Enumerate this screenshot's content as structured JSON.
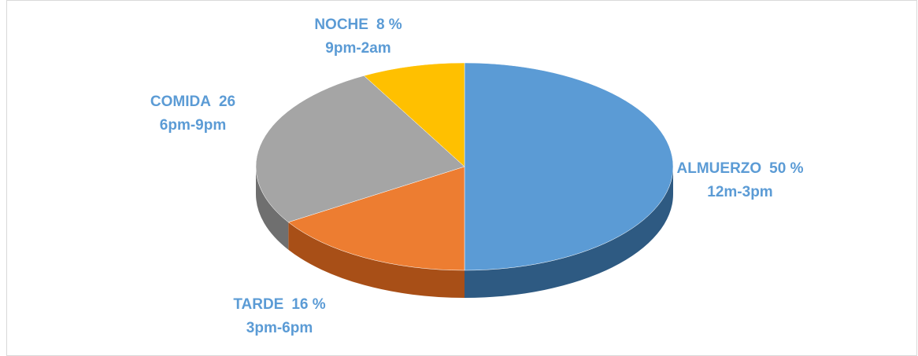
{
  "chart_data": {
    "type": "pie3d",
    "categories": [
      "ALMUERZO",
      "TARDE",
      "COMIDA",
      "NOCHE"
    ],
    "values": [
      50,
      16,
      26,
      8
    ],
    "value_labels": [
      "50 %",
      "16 %",
      "26",
      "8 %"
    ],
    "time_ranges": [
      "12m-3pm",
      "3pm-6pm",
      "6pm-9pm",
      "9pm-2am"
    ],
    "colors": [
      "#5b9bd5",
      "#ed7d31",
      "#a5a5a5",
      "#ffc000"
    ],
    "side_colors": [
      "#2e5a82",
      "#a84f17",
      "#6f6f6f",
      "#b58700"
    ]
  }
}
